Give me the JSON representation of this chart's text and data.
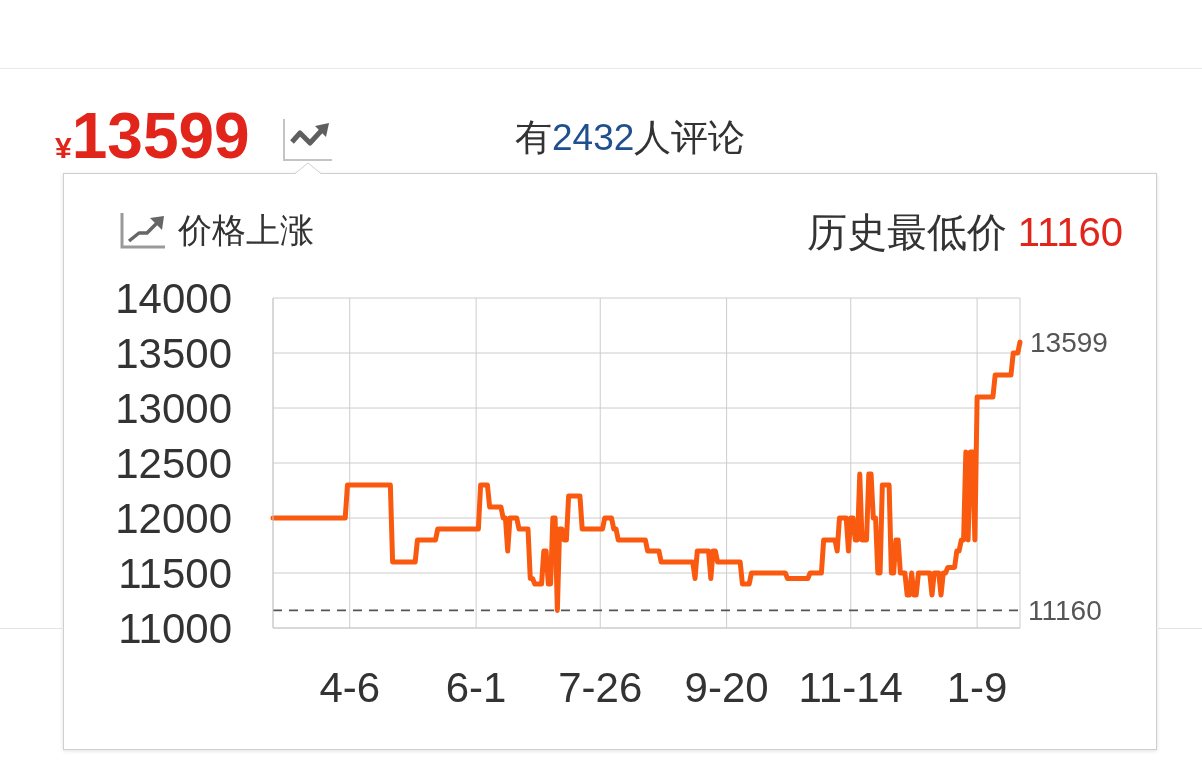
{
  "chart_data": {
    "type": "line",
    "title": "价格上涨",
    "subtitle": "历史最低价 11160",
    "annotations": [
      "¥13599",
      "有2432人评论"
    ],
    "categories": [
      null,
      null,
      null,
      null,
      null,
      null,
      null,
      null,
      null,
      null,
      null,
      null,
      null,
      null,
      null,
      null,
      null,
      null,
      null,
      null,
      null,
      null,
      null,
      null,
      null,
      null,
      null,
      null,
      null,
      null,
      null,
      null,
      null,
      null,
      "4-6",
      null,
      null,
      null,
      null,
      null,
      null,
      null,
      null,
      null,
      null,
      null,
      null,
      null,
      null,
      null,
      null,
      null,
      null,
      null,
      null,
      null,
      null,
      null,
      null,
      null,
      null,
      null,
      null,
      null,
      null,
      null,
      null,
      null,
      null,
      null,
      null,
      null,
      null,
      null,
      null,
      null,
      null,
      null,
      null,
      null,
      null,
      null,
      null,
      null,
      null,
      null,
      null,
      null,
      null,
      null,
      "6-1",
      null,
      null,
      null,
      null,
      null,
      null,
      null,
      null,
      null,
      null,
      null,
      null,
      null,
      null,
      null,
      null,
      null,
      null,
      null,
      null,
      null,
      null,
      null,
      null,
      null,
      null,
      null,
      null,
      null,
      null,
      null,
      null,
      null,
      null,
      null,
      null,
      null,
      null,
      null,
      null,
      null,
      null,
      null,
      null,
      null,
      null,
      null,
      null,
      null,
      null,
      null,
      null,
      null,
      null,
      "7-26",
      null,
      null,
      null,
      null,
      null,
      null,
      null,
      null,
      null,
      null,
      null,
      null,
      null,
      null,
      null,
      null,
      null,
      null,
      null,
      null,
      null,
      null,
      null,
      null,
      null,
      null,
      null,
      null,
      null,
      null,
      null,
      null,
      null,
      null,
      null,
      null,
      null,
      null,
      null,
      null,
      null,
      null,
      null,
      null,
      null,
      null,
      null,
      null,
      null,
      null,
      null,
      null,
      null,
      null,
      null,
      "9-20",
      null,
      null,
      null,
      null,
      null,
      null,
      null,
      null,
      null,
      null,
      null,
      null,
      null,
      null,
      null,
      null,
      null,
      null,
      null,
      null,
      null,
      null,
      null,
      null,
      null,
      null,
      null,
      null,
      null,
      null,
      null,
      null,
      null,
      null,
      null,
      null,
      null,
      null,
      null,
      null,
      null,
      null,
      null,
      null,
      null,
      null,
      null,
      null,
      null,
      null,
      null,
      null,
      null,
      null,
      "11-14",
      null,
      null,
      null,
      null,
      null,
      null,
      null,
      null,
      null,
      null,
      null,
      null,
      null,
      null,
      null,
      null,
      null,
      null,
      null,
      null,
      null,
      null,
      null,
      null,
      null,
      null,
      null,
      null,
      null,
      null,
      null,
      null,
      null,
      null,
      null,
      null,
      null,
      null,
      null,
      null,
      null,
      null,
      null,
      null,
      null,
      null,
      null,
      null,
      null,
      null,
      null,
      null,
      null,
      null,
      null,
      "1-9",
      null,
      null,
      null,
      null,
      null,
      null,
      null,
      null,
      null,
      null,
      null,
      null,
      null,
      null,
      null,
      null,
      null,
      null,
      null
    ],
    "values": [
      12000,
      12000,
      12000,
      12000,
      12000,
      12000,
      12000,
      12000,
      12000,
      12000,
      12000,
      12000,
      12000,
      12000,
      12000,
      12000,
      12000,
      12000,
      12000,
      12000,
      12000,
      12000,
      12000,
      12000,
      12000,
      12000,
      12000,
      12000,
      12000,
      12000,
      12000,
      12000,
      12000,
      12300,
      12300,
      12300,
      12300,
      12300,
      12300,
      12300,
      12300,
      12300,
      12300,
      12300,
      12300,
      12300,
      12300,
      12300,
      12300,
      12300,
      12300,
      12300,
      12300,
      11600,
      11600,
      11600,
      11600,
      11600,
      11600,
      11600,
      11600,
      11600,
      11600,
      11600,
      11800,
      11800,
      11800,
      11800,
      11800,
      11800,
      11800,
      11800,
      11800,
      11900,
      11900,
      11900,
      11900,
      11900,
      11900,
      11900,
      11900,
      11900,
      11900,
      11900,
      11900,
      11900,
      11900,
      11900,
      11900,
      11900,
      11900,
      11900,
      12300,
      12300,
      12300,
      12300,
      12100,
      12100,
      12100,
      12100,
      12100,
      12100,
      12000,
      12000,
      11700,
      12000,
      12000,
      12000,
      12000,
      11900,
      11900,
      11900,
      11900,
      11900,
      11450,
      11450,
      11400,
      11400,
      11400,
      11400,
      11700,
      11700,
      11400,
      11400,
      12000,
      12000,
      11160,
      11900,
      11900,
      11800,
      11800,
      12200,
      12200,
      12200,
      12200,
      12200,
      12200,
      11900,
      11900,
      11900,
      11900,
      11900,
      11900,
      11900,
      11900,
      11900,
      11900,
      12000,
      12000,
      12000,
      12000,
      11900,
      11900,
      11800,
      11800,
      11800,
      11800,
      11800,
      11800,
      11800,
      11800,
      11800,
      11800,
      11800,
      11800,
      11800,
      11700,
      11700,
      11700,
      11700,
      11700,
      11700,
      11600,
      11600,
      11600,
      11600,
      11600,
      11600,
      11600,
      11600,
      11600,
      11600,
      11600,
      11600,
      11600,
      11600,
      11600,
      11450,
      11700,
      11700,
      11700,
      11700,
      11700,
      11700,
      11450,
      11700,
      11700,
      11600,
      11600,
      11600,
      11600,
      11600,
      11600,
      11600,
      11600,
      11600,
      11600,
      11600,
      11400,
      11400,
      11400,
      11400,
      11500,
      11500,
      11500,
      11500,
      11500,
      11500,
      11500,
      11500,
      11500,
      11500,
      11500,
      11500,
      11500,
      11500,
      11500,
      11500,
      11450,
      11450,
      11450,
      11450,
      11450,
      11450,
      11450,
      11450,
      11450,
      11450,
      11500,
      11500,
      11500,
      11500,
      11500,
      11500,
      11800,
      11800,
      11800,
      11800,
      11800,
      11800,
      11700,
      12000,
      12000,
      12000,
      12000,
      11700,
      12000,
      12000,
      11800,
      11800,
      12400,
      11800,
      11800,
      11800,
      12400,
      12400,
      12000,
      12000,
      11500,
      11500,
      12300,
      12300,
      12300,
      12300,
      11500,
      11500,
      11800,
      11800,
      11500,
      11500,
      11500,
      11300,
      11300,
      11500,
      11300,
      11300,
      11500,
      11500,
      11500,
      11500,
      11500,
      11500,
      11300,
      11500,
      11500,
      11500,
      11300,
      11500,
      11500,
      11550,
      11550,
      11550,
      11550,
      11700,
      11700,
      11800,
      11800,
      12600,
      11800,
      12600,
      12600,
      11800,
      13100,
      13100,
      13100,
      13100,
      13100,
      13100,
      13100,
      13100,
      13300,
      13300,
      13300,
      13300,
      13300,
      13300,
      13300,
      13300,
      13500,
      13500,
      13500,
      13599
    ],
    "value_labels": [
      null,
      null,
      null,
      null,
      null,
      null,
      null,
      null,
      null,
      null,
      null,
      null,
      null,
      null,
      null,
      null,
      null,
      null,
      null,
      null,
      null,
      null,
      null,
      null,
      null,
      null,
      null,
      null,
      null,
      null,
      null,
      null,
      null,
      null,
      null,
      null,
      null,
      null,
      null,
      null,
      null,
      null,
      null,
      null,
      null,
      null,
      null,
      null,
      null,
      null,
      null,
      null,
      null,
      null,
      null,
      null,
      null,
      null,
      null,
      null,
      null,
      null,
      null,
      null,
      null,
      null,
      null,
      null,
      null,
      null,
      null,
      null,
      null,
      null,
      null,
      null,
      null,
      null,
      null,
      null,
      null,
      null,
      null,
      null,
      null,
      null,
      null,
      null,
      null,
      null,
      null,
      null,
      null,
      null,
      null,
      null,
      null,
      null,
      null,
      null,
      null,
      null,
      null,
      null,
      null,
      null,
      null,
      null,
      null,
      null,
      null,
      null,
      null,
      null,
      null,
      null,
      null,
      null,
      null,
      null,
      null,
      null,
      null,
      null,
      null,
      null,
      null,
      null,
      null,
      null,
      null,
      null,
      null,
      null,
      null,
      null,
      null,
      null,
      null,
      null,
      null,
      null,
      null,
      null,
      null,
      null,
      null,
      null,
      null,
      null,
      null,
      null,
      null,
      null,
      null,
      null,
      null,
      null,
      null,
      null,
      null,
      null,
      null,
      null,
      null,
      null,
      null,
      null,
      null,
      null,
      null,
      null,
      null,
      null,
      null,
      null,
      null,
      null,
      null,
      null,
      null,
      null,
      null,
      null,
      null,
      null,
      null,
      null,
      null,
      null,
      null,
      null,
      null,
      null,
      null,
      null,
      null,
      null,
      null,
      null,
      null,
      null,
      null,
      null,
      null,
      null,
      null,
      null,
      null,
      null,
      null,
      null,
      null,
      null,
      null,
      null,
      null,
      null,
      null,
      null,
      null,
      null,
      null,
      null,
      null,
      null,
      null,
      null,
      null,
      null,
      null,
      null,
      null,
      null,
      null,
      null,
      null,
      null,
      null,
      null,
      null,
      null,
      null,
      null,
      null,
      null,
      null,
      null,
      null,
      null,
      null,
      null,
      null,
      null,
      null,
      null,
      null,
      null,
      null,
      null,
      null,
      null,
      null,
      null,
      null,
      null,
      null,
      null,
      null,
      null,
      null,
      null,
      null,
      null,
      null,
      null,
      null,
      null,
      null,
      null,
      null,
      null,
      null,
      null,
      null,
      null,
      null,
      null,
      null,
      null,
      null,
      null,
      null,
      null,
      null,
      null,
      null,
      null,
      null,
      null,
      null,
      null,
      null,
      null,
      null,
      null,
      null,
      null,
      null,
      null,
      null,
      null,
      null,
      null,
      null,
      null,
      null,
      null,
      null,
      null,
      null,
      null,
      null,
      null,
      null,
      null,
      null,
      null,
      null,
      null,
      null,
      "13599"
    ],
    "color": "#fa5a0f",
    "marker": "none",
    "ylim": [
      11000,
      14000
    ],
    "yticks": [
      11000,
      11500,
      12000,
      12500,
      13000,
      13500,
      14000
    ],
    "ref_lines": [
      {
        "axis": "y",
        "value": 11160,
        "label": "11160",
        "color": "#555555",
        "line_style": "dashed"
      }
    ],
    "grid": true
  }
}
